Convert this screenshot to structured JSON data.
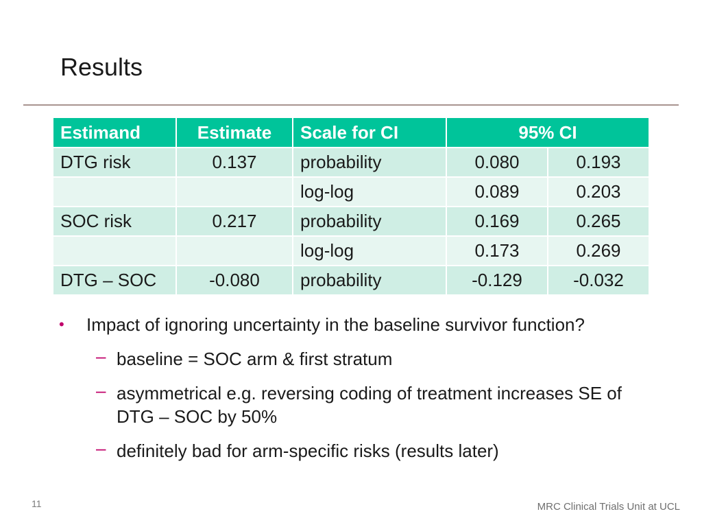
{
  "title": "Results",
  "table": {
    "headers": {
      "estimand": "Estimand",
      "estimate": "Estimate",
      "scale": "Scale for CI",
      "ci": "95% CI"
    },
    "rows": [
      {
        "estimand": "DTG risk",
        "estimate": "0.137",
        "scale": "probability",
        "lower": "0.080",
        "upper": "0.193"
      },
      {
        "estimand": "",
        "estimate": "",
        "scale": "log-log",
        "lower": "0.089",
        "upper": "0.203"
      },
      {
        "estimand": "SOC risk",
        "estimate": "0.217",
        "scale": "probability",
        "lower": "0.169",
        "upper": "0.265"
      },
      {
        "estimand": "",
        "estimate": "",
        "scale": "log-log",
        "lower": "0.173",
        "upper": "0.269"
      },
      {
        "estimand": "DTG – SOC",
        "estimate": "-0.080",
        "scale": "probability",
        "lower": "-0.129",
        "upper": "-0.032"
      }
    ]
  },
  "bullets": {
    "main": "Impact of ignoring uncertainty in the baseline survivor function?",
    "sub": [
      "baseline = SOC arm & first stratum",
      "asymmetrical e.g. reversing coding of treatment increases SE of DTG – SOC by 50%",
      "definitely bad for arm-specific risks (results later)"
    ]
  },
  "footer": {
    "page_number": "11",
    "organization": "MRC Clinical Trials Unit at UCL"
  },
  "colors": {
    "header_bg": "#00c49a",
    "row_dark": "#cfeee4",
    "row_light": "#e7f6f1",
    "bullet_accent": "#c0006a",
    "rule": "#a89490"
  }
}
